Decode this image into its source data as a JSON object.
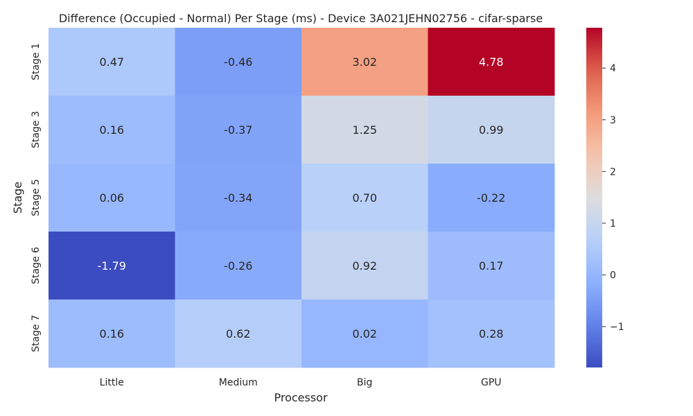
{
  "chart_data": {
    "type": "heatmap",
    "title": "Difference (Occupied - Normal) Per Stage (ms) - Device 3A021JEHN02756 - cifar-sparse",
    "xlabel": "Processor",
    "ylabel": "Stage",
    "x_categories": [
      "Little",
      "Medium",
      "Big",
      "GPU"
    ],
    "y_categories": [
      "Stage 1",
      "Stage 3",
      "Stage 5",
      "Stage 6",
      "Stage 7"
    ],
    "values": [
      [
        0.47,
        -0.46,
        3.02,
        4.78
      ],
      [
        0.16,
        -0.37,
        1.25,
        0.99
      ],
      [
        0.06,
        -0.34,
        0.7,
        -0.22
      ],
      [
        -1.79,
        -0.26,
        0.92,
        0.17
      ],
      [
        0.16,
        0.62,
        0.02,
        0.28
      ]
    ],
    "value_format": "0.00",
    "colormap": "coolwarm",
    "vmin": -1.79,
    "vmax": 4.78,
    "colorbar_ticks": [
      4,
      3,
      2,
      1,
      0,
      -1
    ],
    "colorbar_tick_labels": [
      "4",
      "3",
      "2",
      "1",
      "0",
      "−1"
    ],
    "grid": false,
    "colorbar_position": "right"
  }
}
